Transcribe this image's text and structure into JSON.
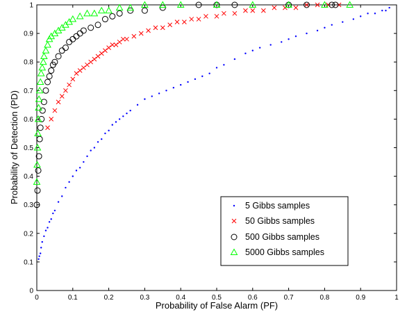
{
  "chart_data": {
    "type": "scatter",
    "title": "",
    "xlabel": "Probability of False Alarm (PF)",
    "ylabel": "Probability of Detection (PD)",
    "xlim": [
      0,
      1
    ],
    "ylim": [
      0,
      1
    ],
    "xticks": [
      "0",
      "0.1",
      "0.2",
      "0.3",
      "0.4",
      "0.5",
      "0.6",
      "0.7",
      "0.8",
      "0.9",
      "1"
    ],
    "yticks": [
      "0",
      "0.1",
      "0.2",
      "0.3",
      "0.4",
      "0.5",
      "0.6",
      "0.7",
      "0.8",
      "0.9",
      "1"
    ],
    "grid": false,
    "legend_position": "lower-right",
    "series": [
      {
        "name": "5 Gibbs samples",
        "marker": "dot",
        "color": "#0000ff",
        "x": [
          0.005,
          0.007,
          0.01,
          0.012,
          0.015,
          0.02,
          0.025,
          0.03,
          0.035,
          0.04,
          0.045,
          0.05,
          0.06,
          0.07,
          0.08,
          0.09,
          0.1,
          0.11,
          0.12,
          0.13,
          0.14,
          0.15,
          0.16,
          0.17,
          0.18,
          0.19,
          0.2,
          0.21,
          0.22,
          0.23,
          0.24,
          0.25,
          0.26,
          0.28,
          0.3,
          0.32,
          0.34,
          0.36,
          0.38,
          0.4,
          0.42,
          0.44,
          0.46,
          0.48,
          0.5,
          0.52,
          0.55,
          0.58,
          0.6,
          0.62,
          0.65,
          0.68,
          0.7,
          0.72,
          0.75,
          0.78,
          0.8,
          0.82,
          0.85,
          0.88,
          0.9,
          0.92,
          0.94,
          0.96,
          0.97,
          0.98
        ],
        "y": [
          0.11,
          0.12,
          0.13,
          0.15,
          0.17,
          0.19,
          0.21,
          0.22,
          0.24,
          0.25,
          0.27,
          0.28,
          0.31,
          0.33,
          0.36,
          0.38,
          0.4,
          0.42,
          0.43,
          0.45,
          0.47,
          0.49,
          0.5,
          0.52,
          0.53,
          0.55,
          0.56,
          0.58,
          0.59,
          0.6,
          0.61,
          0.62,
          0.63,
          0.65,
          0.67,
          0.68,
          0.69,
          0.7,
          0.71,
          0.72,
          0.73,
          0.74,
          0.75,
          0.76,
          0.78,
          0.79,
          0.81,
          0.83,
          0.84,
          0.85,
          0.86,
          0.87,
          0.88,
          0.89,
          0.9,
          0.91,
          0.92,
          0.93,
          0.94,
          0.95,
          0.96,
          0.97,
          0.97,
          0.98,
          0.98,
          0.99
        ]
      },
      {
        "name": "50 Gibbs samples",
        "marker": "x",
        "color": "#ff0000",
        "x": [
          0.03,
          0.04,
          0.05,
          0.06,
          0.07,
          0.08,
          0.09,
          0.1,
          0.11,
          0.12,
          0.13,
          0.14,
          0.15,
          0.16,
          0.17,
          0.18,
          0.19,
          0.2,
          0.21,
          0.22,
          0.23,
          0.24,
          0.25,
          0.27,
          0.29,
          0.31,
          0.33,
          0.35,
          0.37,
          0.39,
          0.41,
          0.43,
          0.45,
          0.47,
          0.5,
          0.52,
          0.55,
          0.58,
          0.6,
          0.63,
          0.66,
          0.69,
          0.72,
          0.75,
          0.78,
          0.81,
          0.84
        ],
        "y": [
          0.57,
          0.6,
          0.63,
          0.66,
          0.68,
          0.7,
          0.72,
          0.74,
          0.76,
          0.77,
          0.78,
          0.79,
          0.8,
          0.81,
          0.82,
          0.83,
          0.84,
          0.85,
          0.86,
          0.86,
          0.87,
          0.88,
          0.88,
          0.89,
          0.9,
          0.91,
          0.92,
          0.92,
          0.93,
          0.94,
          0.94,
          0.95,
          0.95,
          0.96,
          0.96,
          0.97,
          0.97,
          0.98,
          0.98,
          0.98,
          0.99,
          0.99,
          0.99,
          1.0,
          1.0,
          1.0,
          1.0
        ]
      },
      {
        "name": "500 Gibbs samples",
        "marker": "circle",
        "color": "#000000",
        "x": [
          0.0,
          0.002,
          0.004,
          0.006,
          0.008,
          0.01,
          0.013,
          0.016,
          0.02,
          0.025,
          0.03,
          0.035,
          0.04,
          0.045,
          0.05,
          0.06,
          0.07,
          0.08,
          0.09,
          0.1,
          0.11,
          0.12,
          0.13,
          0.15,
          0.17,
          0.19,
          0.21,
          0.23,
          0.26,
          0.3,
          0.35,
          0.45,
          0.5,
          0.55,
          0.7,
          0.75,
          0.82,
          0.83
        ],
        "y": [
          0.3,
          0.35,
          0.42,
          0.47,
          0.53,
          0.57,
          0.6,
          0.63,
          0.66,
          0.7,
          0.73,
          0.75,
          0.77,
          0.79,
          0.8,
          0.82,
          0.84,
          0.85,
          0.87,
          0.88,
          0.89,
          0.9,
          0.91,
          0.92,
          0.93,
          0.95,
          0.96,
          0.97,
          0.98,
          0.98,
          0.99,
          1.0,
          1.0,
          1.0,
          1.0,
          1.0,
          1.0,
          1.0
        ]
      },
      {
        "name": "5000 Gibbs samples",
        "marker": "triangle",
        "color": "#00ff00",
        "x": [
          0.0,
          0.001,
          0.002,
          0.003,
          0.004,
          0.005,
          0.006,
          0.008,
          0.01,
          0.012,
          0.015,
          0.018,
          0.02,
          0.025,
          0.03,
          0.035,
          0.04,
          0.05,
          0.06,
          0.07,
          0.08,
          0.09,
          0.1,
          0.12,
          0.14,
          0.16,
          0.18,
          0.2,
          0.23,
          0.26,
          0.3,
          0.35,
          0.4,
          0.5,
          0.6,
          0.7,
          0.8,
          0.87
        ],
        "y": [
          0.38,
          0.44,
          0.5,
          0.55,
          0.6,
          0.64,
          0.67,
          0.7,
          0.73,
          0.76,
          0.78,
          0.8,
          0.82,
          0.84,
          0.86,
          0.88,
          0.89,
          0.9,
          0.91,
          0.92,
          0.93,
          0.94,
          0.95,
          0.96,
          0.97,
          0.97,
          0.98,
          0.98,
          0.99,
          0.99,
          1.0,
          1.0,
          1.0,
          1.0,
          1.0,
          1.0,
          1.0,
          1.0
        ]
      }
    ]
  }
}
